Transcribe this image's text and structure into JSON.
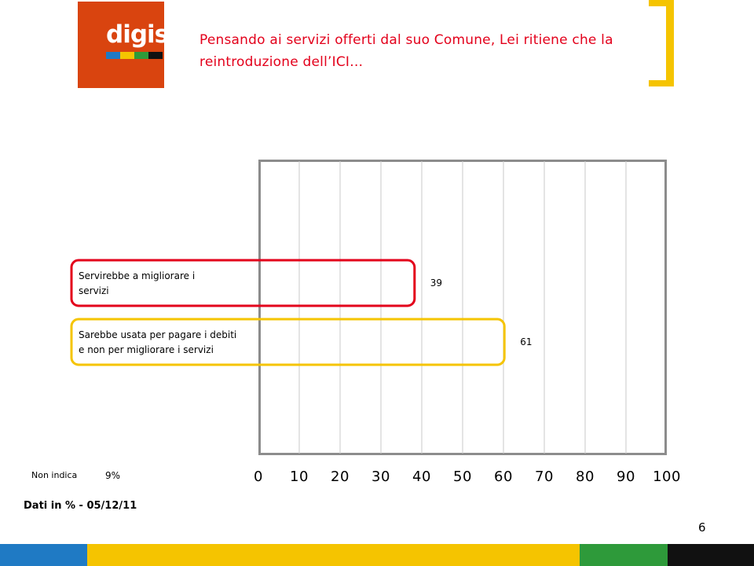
{
  "logo": {
    "text": "digis",
    "background": "#d9440f",
    "stripes": [
      "#1f7ac4",
      "#f5c400",
      "#2e9a3a",
      "#111111"
    ]
  },
  "header": {
    "question": "Pensando ai servizi offerti dal suo Comune, Lei ritiene che la reintroduzione dell’ICI…",
    "accent_bracket_color": "#f5c400"
  },
  "chart_data": {
    "type": "bar",
    "orientation": "horizontal",
    "categories": [
      "Servirebbe a migliorare i servizi",
      "Sarebbe usata per pagare i debiti e non per migliorare i servizi"
    ],
    "values": [
      39,
      61
    ],
    "value_labels": [
      "39",
      "61"
    ],
    "category_label_lines": [
      [
        "Servirebbe a migliorare i",
        "servizi"
      ],
      [
        "Sarebbe usata per pagare i debiti",
        "e non per migliorare i servizi"
      ]
    ],
    "bar_outline_colors": [
      "#e3001b",
      "#f5c400"
    ],
    "xlim": [
      0,
      100
    ],
    "xticks": [
      "0",
      "10",
      "20",
      "30",
      "40",
      "50",
      "60",
      "70",
      "80",
      "90",
      "100"
    ],
    "grid": true,
    "title": "",
    "xlabel": "",
    "ylabel": ""
  },
  "notes": {
    "non_indica_label": "Non indica",
    "non_indica_value": "9%",
    "dati": "Dati in % - 05/12/11",
    "page_number": "6"
  },
  "footer": {
    "stripe_colors": [
      "#1f7ac4",
      "#f5c400",
      "#2e9a3a",
      "#111111"
    ]
  }
}
